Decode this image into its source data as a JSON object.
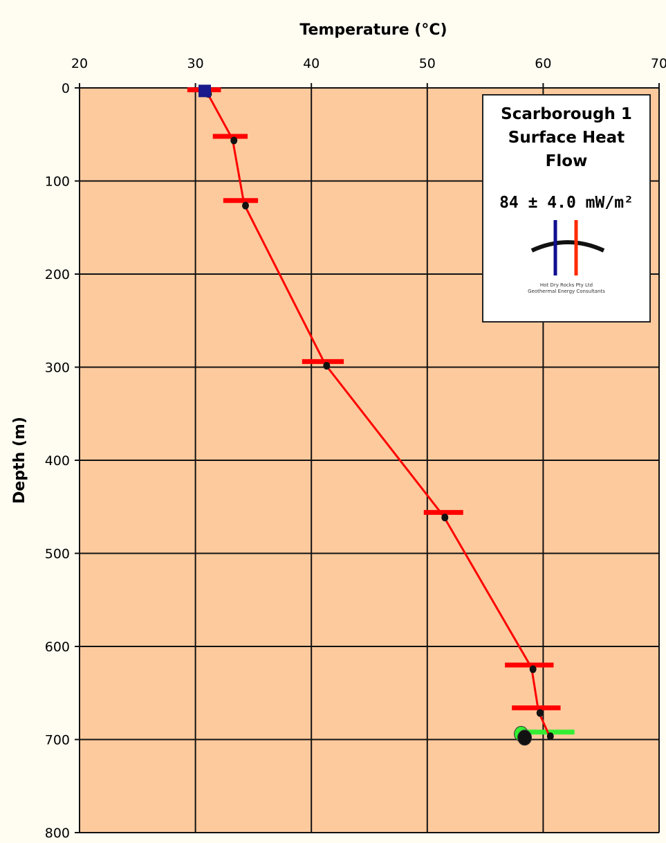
{
  "chart_data": {
    "type": "line",
    "xlabel": "Temperature (°C)",
    "ylabel": "Depth (m)",
    "xlim": [
      20,
      70
    ],
    "ylim": [
      800,
      0
    ],
    "x_ticks": [
      20,
      30,
      40,
      50,
      60,
      70
    ],
    "y_ticks": [
      0,
      100,
      200,
      300,
      400,
      500,
      600,
      700,
      800
    ],
    "grid": true,
    "plot_background": "#fdca9d",
    "series": [
      {
        "name": "",
        "color": "#ff0000",
        "marker": "circle-dark",
        "points": [
          {
            "x": 31.0,
            "y": 5
          },
          {
            "x": 33.2,
            "y": 55
          },
          {
            "x": 34.2,
            "y": 125
          },
          {
            "x": 41.2,
            "y": 297
          },
          {
            "x": 51.4,
            "y": 460
          },
          {
            "x": 59.0,
            "y": 623
          },
          {
            "x": 59.6,
            "y": 670
          },
          {
            "x": 60.5,
            "y": 695
          }
        ]
      }
    ],
    "error_bars": [
      {
        "y": 2,
        "xmin": 29.3,
        "xmax": 32.2,
        "color": "#ff0000"
      },
      {
        "y": 52,
        "xmin": 31.5,
        "xmax": 34.5,
        "color": "#ff0000"
      },
      {
        "y": 121,
        "xmin": 32.4,
        "xmax": 35.4,
        "color": "#ff0000"
      },
      {
        "y": 294,
        "xmin": 39.2,
        "xmax": 42.8,
        "color": "#ff0000"
      },
      {
        "y": 456,
        "xmin": 49.7,
        "xmax": 53.1,
        "color": "#ff0000"
      },
      {
        "y": 620,
        "xmin": 56.7,
        "xmax": 60.9,
        "color": "#ff0000"
      },
      {
        "y": 666,
        "xmin": 57.3,
        "xmax": 61.5,
        "color": "#ff0000"
      },
      {
        "y": 692,
        "xmin": 58.0,
        "xmax": 62.7,
        "color": "#33ee33"
      }
    ],
    "extra_markers": [
      {
        "x": 30.8,
        "y": 4,
        "shape": "square",
        "color": "#1a1a8c"
      },
      {
        "x": 58.1,
        "y": 694,
        "shape": "ellipse",
        "color": "#33ee33"
      },
      {
        "x": 58.4,
        "y": 698,
        "shape": "ellipse",
        "color": "#111111"
      }
    ]
  },
  "legend": {
    "title_lines": [
      "Scarborough 1",
      "Surface Heat",
      "Flow"
    ],
    "value": "84 ± 4.0 mW/m²",
    "company_lines": [
      "Hot Dry Rocks Pty Ltd",
      "Geothermal Energy Consultants"
    ],
    "logo_colors": {
      "blue": "#101090",
      "red": "#ff2a00",
      "arc": "#111111"
    }
  }
}
